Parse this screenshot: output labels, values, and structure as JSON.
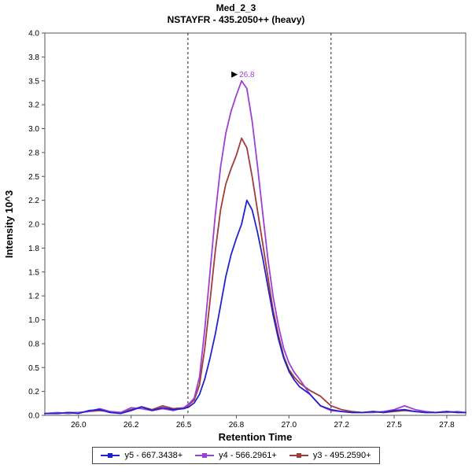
{
  "header": {
    "title": "Med_2_3",
    "subtitle": "NSTAYFR - 435.2050++ (heavy)"
  },
  "chart_data": {
    "type": "line",
    "title": "Med_2_3",
    "subtitle": "NSTAYFR - 435.2050++ (heavy)",
    "xlabel": "Retention Time",
    "ylabel": "Intensity 10^3",
    "xlim": [
      25.84,
      27.84
    ],
    "ylim": [
      0,
      4.0
    ],
    "grid": false,
    "legend_position": "bottom",
    "x_ticks": [
      {
        "v": 26.0,
        "label": "26.0"
      },
      {
        "v": 26.25,
        "label": "26.2"
      },
      {
        "v": 26.5,
        "label": "26.5"
      },
      {
        "v": 26.75,
        "label": "26.8"
      },
      {
        "v": 27.0,
        "label": "27.0"
      },
      {
        "v": 27.25,
        "label": "27.2"
      },
      {
        "v": 27.5,
        "label": "27.5"
      },
      {
        "v": 27.75,
        "label": "27.8"
      }
    ],
    "y_ticks": [
      {
        "v": 0.0,
        "label": "0.0"
      },
      {
        "v": 0.25,
        "label": "0.2"
      },
      {
        "v": 0.5,
        "label": "0.5"
      },
      {
        "v": 0.75,
        "label": "0.8"
      },
      {
        "v": 1.0,
        "label": "1.0"
      },
      {
        "v": 1.25,
        "label": "1.2"
      },
      {
        "v": 1.5,
        "label": "1.5"
      },
      {
        "v": 1.75,
        "label": "1.8"
      },
      {
        "v": 2.0,
        "label": "2.0"
      },
      {
        "v": 2.25,
        "label": "2.2"
      },
      {
        "v": 2.5,
        "label": "2.5"
      },
      {
        "v": 2.75,
        "label": "2.8"
      },
      {
        "v": 3.0,
        "label": "3.0"
      },
      {
        "v": 3.25,
        "label": "3.2"
      },
      {
        "v": 3.5,
        "label": "3.5"
      },
      {
        "v": 3.75,
        "label": "3.8"
      },
      {
        "v": 4.0,
        "label": "4.0"
      }
    ],
    "integration_boundaries": [
      26.52,
      27.2
    ],
    "annotation": {
      "x": 26.775,
      "y": 3.5,
      "label": "26.8"
    },
    "x": [
      25.84,
      25.9,
      25.95,
      26.0,
      26.05,
      26.1,
      26.15,
      26.2,
      26.25,
      26.3,
      26.35,
      26.4,
      26.45,
      26.5,
      26.525,
      26.55,
      26.575,
      26.6,
      26.625,
      26.65,
      26.675,
      26.7,
      26.725,
      26.75,
      26.775,
      26.8,
      26.825,
      26.85,
      26.875,
      26.9,
      26.925,
      26.95,
      26.975,
      27.0,
      27.025,
      27.05,
      27.075,
      27.1,
      27.15,
      27.2,
      27.25,
      27.3,
      27.35,
      27.4,
      27.45,
      27.5,
      27.55,
      27.6,
      27.65,
      27.7,
      27.75,
      27.8,
      27.84
    ],
    "series": [
      {
        "name": "y5 - 667.3438+",
        "color": "#2222cc",
        "values": [
          0.02,
          0.02,
          0.03,
          0.02,
          0.05,
          0.06,
          0.03,
          0.02,
          0.05,
          0.09,
          0.05,
          0.08,
          0.06,
          0.07,
          0.09,
          0.13,
          0.22,
          0.38,
          0.6,
          0.85,
          1.15,
          1.45,
          1.68,
          1.85,
          2.0,
          2.25,
          2.15,
          1.92,
          1.65,
          1.35,
          1.05,
          0.8,
          0.6,
          0.46,
          0.37,
          0.3,
          0.26,
          0.22,
          0.1,
          0.06,
          0.04,
          0.03,
          0.03,
          0.04,
          0.03,
          0.05,
          0.06,
          0.04,
          0.03,
          0.03,
          0.04,
          0.03,
          0.03
        ]
      },
      {
        "name": "y4 - 566.2961+",
        "color": "#9d3fd3",
        "values": [
          0.02,
          0.03,
          0.02,
          0.03,
          0.04,
          0.07,
          0.04,
          0.03,
          0.08,
          0.07,
          0.05,
          0.07,
          0.05,
          0.08,
          0.12,
          0.18,
          0.4,
          0.9,
          1.5,
          2.1,
          2.6,
          2.95,
          3.18,
          3.35,
          3.5,
          3.42,
          3.08,
          2.62,
          2.12,
          1.64,
          1.24,
          0.94,
          0.7,
          0.55,
          0.45,
          0.38,
          0.3,
          0.22,
          0.1,
          0.05,
          0.04,
          0.03,
          0.03,
          0.03,
          0.04,
          0.06,
          0.1,
          0.06,
          0.04,
          0.03,
          0.03,
          0.04,
          0.03
        ]
      },
      {
        "name": "y3 - 495.2590+",
        "color": "#a03c3a",
        "values": [
          0.02,
          0.02,
          0.03,
          0.03,
          0.04,
          0.05,
          0.04,
          0.03,
          0.06,
          0.09,
          0.06,
          0.1,
          0.07,
          0.08,
          0.11,
          0.16,
          0.32,
          0.7,
          1.2,
          1.72,
          2.15,
          2.42,
          2.58,
          2.72,
          2.9,
          2.8,
          2.5,
          2.15,
          1.8,
          1.45,
          1.1,
          0.84,
          0.62,
          0.48,
          0.4,
          0.34,
          0.3,
          0.26,
          0.2,
          0.1,
          0.06,
          0.04,
          0.03,
          0.04,
          0.03,
          0.04,
          0.05,
          0.04,
          0.03,
          0.03,
          0.04,
          0.03,
          0.03
        ]
      }
    ]
  }
}
